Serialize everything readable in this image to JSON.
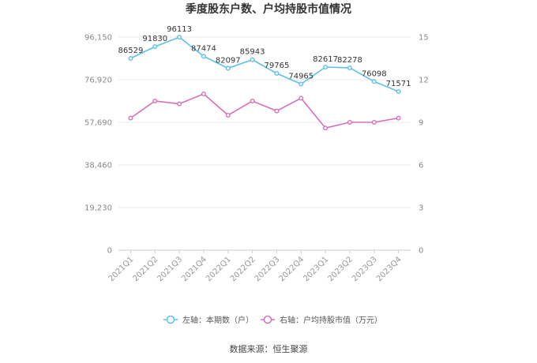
{
  "chart_data": {
    "type": "line",
    "title": "季度股东户数、户均持股市值情况",
    "categories": [
      "2021Q1",
      "2021Q2",
      "2021Q3",
      "2021Q4",
      "2022Q1",
      "2022Q2",
      "2022Q3",
      "2022Q4",
      "2023Q1",
      "2023Q2",
      "2023Q3",
      "2023Q4"
    ],
    "left_axis": {
      "min": 0,
      "max": 96150,
      "ticks": [
        "0",
        "19,230",
        "38,460",
        "57,690",
        "76,920",
        "96,150"
      ]
    },
    "right_axis": {
      "min": 0,
      "max": 15,
      "ticks": [
        "0",
        "3",
        "6",
        "9",
        "12",
        "15"
      ]
    },
    "series": [
      {
        "name": "左轴：本期数（户）",
        "axis": "left",
        "color": "#5bc0eb",
        "values": [
          86529,
          91830,
          96113,
          87474,
          82097,
          85943,
          79765,
          74965,
          82617,
          82278,
          76098,
          71571
        ],
        "labels": [
          "86529",
          "91830",
          "96113",
          "87474",
          "82097",
          "85943",
          "79765",
          "74965",
          "82617",
          "82278",
          "76098",
          "71571"
        ]
      },
      {
        "name": "右轴：户均持股市值（万元）",
        "axis": "right",
        "color": "#d670b8",
        "values": [
          9.3,
          10.5,
          10.3,
          11.0,
          9.5,
          10.5,
          9.8,
          10.7,
          8.6,
          9.0,
          9.0,
          9.3
        ]
      }
    ],
    "grid": true,
    "legend_position": "bottom"
  },
  "source": "数据来源：恒生聚源"
}
